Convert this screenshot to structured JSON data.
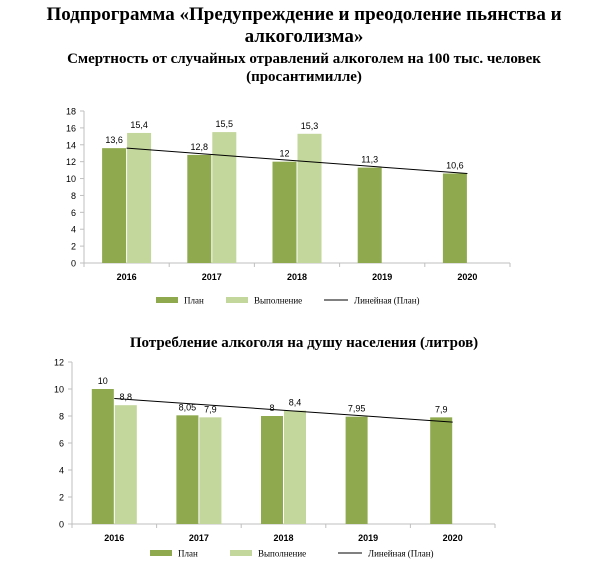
{
  "page": {
    "title_line1": "Подпрограмма «Предупреждение и преодоление пьянства и",
    "title_line2": "алкоголизма»"
  },
  "colors": {
    "plan": "#8faa4e",
    "fact": "#c3d69b",
    "trend": "#000000",
    "axis": "#bfbfbf"
  },
  "chart_data": [
    {
      "type": "bar",
      "title_line1": "Смертность от случайных отравлений алкоголем на 100 тыс. человек",
      "title_line2": "(просантимилле)",
      "categories": [
        "2016",
        "2017",
        "2018",
        "2019",
        "2020"
      ],
      "series": [
        {
          "name": "План",
          "values": [
            13.6,
            12.8,
            12,
            11.3,
            10.6
          ],
          "labels": [
            "13,6",
            "12,8",
            "12",
            "11,3",
            "10,6"
          ]
        },
        {
          "name": "Выполнение",
          "values": [
            15.4,
            15.5,
            15.3,
            null,
            null
          ],
          "labels": [
            "15,4",
            "15,5",
            "15,3",
            "",
            ""
          ]
        }
      ],
      "trendline": {
        "name": "Линейная (План)",
        "start": 13.6,
        "end": 10.6
      },
      "ylim": [
        0,
        18
      ],
      "yticks": [
        "0",
        "2",
        "4",
        "6",
        "8",
        "10",
        "12",
        "14",
        "16",
        "18"
      ],
      "grid": false,
      "legend_position": "bottom"
    },
    {
      "type": "bar",
      "title_line1": "Потребление алкоголя на душу населения (литров)",
      "categories": [
        "2016",
        "2017",
        "2018",
        "2019",
        "2020"
      ],
      "series": [
        {
          "name": "План",
          "values": [
            10,
            8.05,
            8,
            7.95,
            7.9
          ],
          "labels": [
            "10",
            "8,05",
            "8",
            "7,95",
            "7,9"
          ]
        },
        {
          "name": "Выполнение",
          "values": [
            8.8,
            7.9,
            8.4,
            null,
            null
          ],
          "labels": [
            "8,8",
            "7,9",
            "8,4",
            "",
            ""
          ]
        }
      ],
      "trendline": {
        "name": "Линейная (План)",
        "start": 9.3,
        "end": 7.55
      },
      "ylim": [
        0,
        12
      ],
      "yticks": [
        "0",
        "2",
        "4",
        "6",
        "8",
        "10",
        "12"
      ],
      "grid": false,
      "legend_position": "bottom"
    }
  ]
}
